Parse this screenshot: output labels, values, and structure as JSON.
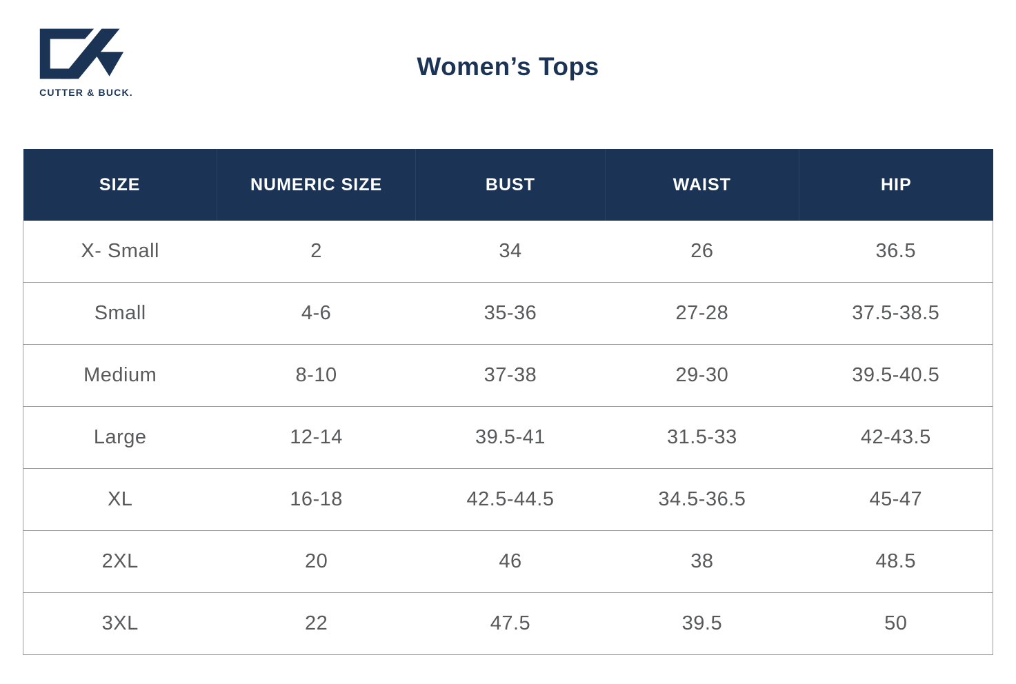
{
  "logo": {
    "brand_name": "CUTTER & BUCK.",
    "mark": "cb-monogram"
  },
  "title": "Women’s Tops",
  "colors": {
    "navy": "#1b3355",
    "header_text": "#ffffff",
    "body_text": "#58595b",
    "row_border": "#9a9a9a"
  },
  "table": {
    "headers": [
      "SIZE",
      "NUMERIC SIZE",
      "BUST",
      "WAIST",
      "HIP"
    ],
    "rows": [
      [
        "X- Small",
        "2",
        "34",
        "26",
        "36.5"
      ],
      [
        "Small",
        "4-6",
        "35-36",
        "27-28",
        "37.5-38.5"
      ],
      [
        "Medium",
        "8-10",
        "37-38",
        "29-30",
        "39.5-40.5"
      ],
      [
        "Large",
        "12-14",
        "39.5-41",
        "31.5-33",
        "42-43.5"
      ],
      [
        "XL",
        "16-18",
        "42.5-44.5",
        "34.5-36.5",
        "45-47"
      ],
      [
        "2XL",
        "20",
        "46",
        "38",
        "48.5"
      ],
      [
        "3XL",
        "22",
        "47.5",
        "39.5",
        "50"
      ]
    ]
  }
}
